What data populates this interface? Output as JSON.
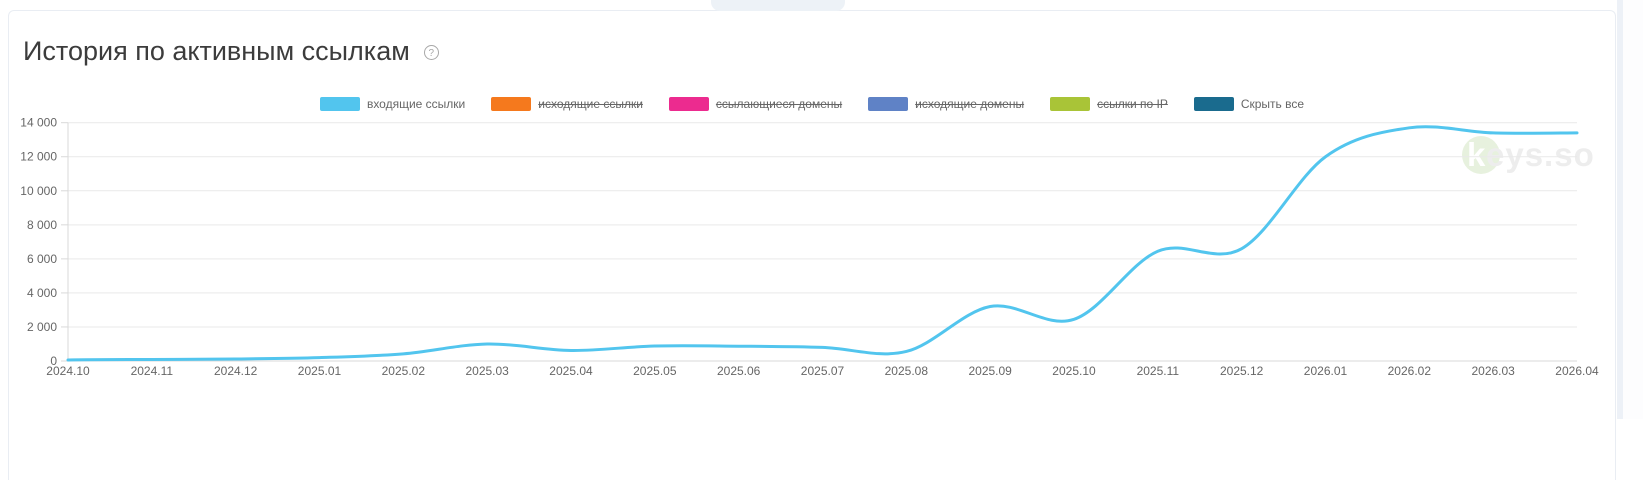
{
  "header": {
    "title": "История по активным ссылкам",
    "help_icon": "?"
  },
  "top_tab": {
    "label": ""
  },
  "legend": {
    "items": [
      {
        "label": "входящие ссылки",
        "color": "#52c5ee",
        "hidden": false,
        "role": "series-toggle"
      },
      {
        "label": "исходящие ссылки",
        "color": "#f5791d",
        "hidden": true,
        "role": "series-toggle"
      },
      {
        "label": "ссылающиеся домены",
        "color": "#ec2b8f",
        "hidden": true,
        "role": "series-toggle"
      },
      {
        "label": "исходящие домены",
        "color": "#5f82c6",
        "hidden": true,
        "role": "series-toggle"
      },
      {
        "label": "ссылки по IP",
        "color": "#a9c437",
        "hidden": true,
        "role": "series-toggle"
      },
      {
        "label": "Скрыть все",
        "color": "#1a6b8e",
        "hidden": false,
        "role": "hide-all"
      }
    ]
  },
  "chart_data": {
    "type": "line",
    "title": "История по активным ссылкам",
    "x": [
      "2024.10",
      "2024.11",
      "2024.12",
      "2025.01",
      "2025.02",
      "2025.03",
      "2025.04",
      "2025.05",
      "2025.06",
      "2025.07",
      "2025.08",
      "2025.09",
      "2025.10",
      "2025.11",
      "2025.12",
      "2026.01",
      "2026.02",
      "2026.03",
      "2026.04"
    ],
    "series": [
      {
        "name": "входящие ссылки",
        "color": "#52c5ee",
        "values": [
          60,
          90,
          120,
          200,
          420,
          1000,
          620,
          880,
          870,
          800,
          560,
          3200,
          2450,
          6450,
          6600,
          12000,
          13700,
          13400,
          13400
        ]
      }
    ],
    "hidden_series": [
      "исходящие ссылки",
      "ссылающиеся домены",
      "исходящие домены",
      "ссылки по IP"
    ],
    "legend_extra": "Скрыть все",
    "xlabel": "",
    "ylabel": "",
    "ylim": [
      0,
      14000
    ],
    "yticks": [
      0,
      2000,
      4000,
      6000,
      8000,
      10000,
      12000,
      14000
    ],
    "ytick_labels": [
      "0",
      "2 000",
      "4 000",
      "6 000",
      "8 000",
      "10 000",
      "12 000",
      "14 000"
    ],
    "grid": true,
    "legend_position": "top"
  },
  "watermark": {
    "k": "k",
    "rest": "eys.so"
  },
  "colors": {
    "accent_line": "#52c5ee",
    "grid": "#e9e9e9",
    "axis": "#d9d9d9",
    "text_muted": "#666666",
    "title_text": "#3c3c3c",
    "card_border": "#e9edf3",
    "tab_bg": "#edf2f7",
    "watermark_circle": "#e7f1de",
    "watermark_text": "#ededed"
  }
}
